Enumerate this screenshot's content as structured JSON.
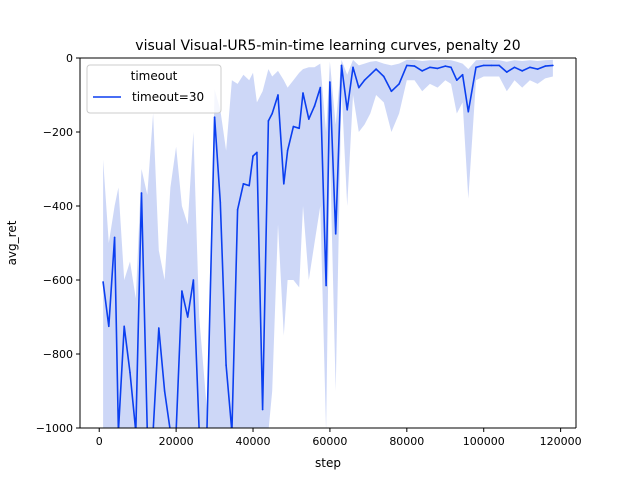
{
  "chart_data": {
    "type": "line",
    "title": "visual Visual-UR5-min-time learning curves, penalty 20",
    "xlabel": "step",
    "ylabel": "avg_ret",
    "xlim": [
      -5000,
      124000
    ],
    "ylim": [
      -1000,
      0
    ],
    "xticks": [
      0,
      20000,
      40000,
      60000,
      80000,
      100000,
      120000
    ],
    "xtick_labels": [
      "0",
      "20000",
      "40000",
      "60000",
      "80000",
      "100000",
      "120000"
    ],
    "yticks": [
      -1000,
      -800,
      -600,
      -400,
      -200,
      0
    ],
    "ytick_labels": [
      "−1000",
      "−800",
      "−600",
      "−400",
      "−200",
      "0"
    ],
    "grid": false,
    "legend": {
      "title": "timeout",
      "placement": "top-left",
      "entries": [
        "timeout=30"
      ]
    },
    "series": [
      {
        "name": "timeout=30",
        "color": "#0b3ff0",
        "band_color": "#c4d0f6",
        "x": [
          1000,
          2500,
          4000,
          5000,
          6500,
          8000,
          9500,
          11000,
          12500,
          14000,
          15500,
          17000,
          18500,
          20000,
          21500,
          23000,
          24500,
          26000,
          28000,
          30000,
          31500,
          33000,
          34500,
          36000,
          37500,
          39000,
          40000,
          41000,
          42500,
          44000,
          45000,
          46500,
          48000,
          49000,
          50500,
          52000,
          53000,
          54500,
          56000,
          57500,
          59000,
          60000,
          61500,
          63000,
          64500,
          66000,
          67500,
          69000,
          70500,
          72000,
          74000,
          76000,
          78000,
          80000,
          82000,
          84000,
          86000,
          88000,
          90000,
          91500,
          93000,
          94500,
          96000,
          98000,
          100000,
          102000,
          104000,
          106000,
          108000,
          110000,
          112000,
          114000,
          116000,
          118000
        ],
        "y": [
          -605,
          -725,
          -485,
          -1010,
          -725,
          -850,
          -1010,
          -365,
          -1010,
          -1010,
          -730,
          -900,
          -1010,
          -1010,
          -630,
          -700,
          -600,
          -1010,
          -1010,
          -160,
          -390,
          -830,
          -1010,
          -410,
          -340,
          -345,
          -265,
          -255,
          -950,
          -170,
          -150,
          -100,
          -340,
          -250,
          -185,
          -190,
          -95,
          -165,
          -130,
          -80,
          -615,
          -65,
          -475,
          -20,
          -140,
          -25,
          -80,
          -60,
          -45,
          -30,
          -50,
          -90,
          -70,
          -20,
          -22,
          -35,
          -25,
          -28,
          -22,
          -25,
          -60,
          -45,
          -145,
          -25,
          -20,
          -20,
          -20,
          -38,
          -25,
          -35,
          -25,
          -30,
          -22,
          -20
        ],
        "band_upper": [
          -275,
          -500,
          -400,
          -350,
          -600,
          -550,
          -650,
          -300,
          -370,
          -150,
          -520,
          -600,
          -350,
          -240,
          -400,
          -450,
          -200,
          -700,
          -950,
          -85,
          -140,
          -250,
          -60,
          -70,
          -45,
          -60,
          -40,
          -120,
          -90,
          -30,
          -50,
          -35,
          -60,
          -80,
          -60,
          -40,
          -30,
          -25,
          -25,
          -15,
          -200,
          -10,
          -180,
          -5,
          -45,
          -5,
          -20,
          -15,
          -10,
          -8,
          -15,
          -20,
          -15,
          -5,
          -5,
          -8,
          -6,
          -6,
          -5,
          -6,
          -10,
          -15,
          -30,
          -6,
          -5,
          -5,
          -6,
          -10,
          -6,
          -8,
          -6,
          -8,
          -6,
          -5
        ],
        "band_lower": [
          -1010,
          -1010,
          -1010,
          -1010,
          -1010,
          -1010,
          -1010,
          -1010,
          -1010,
          -1010,
          -1010,
          -1010,
          -1010,
          -1010,
          -1010,
          -1010,
          -1010,
          -1010,
          -1010,
          -1010,
          -1010,
          -1010,
          -1010,
          -1010,
          -1010,
          -1010,
          -1010,
          -1010,
          -1010,
          -1010,
          -900,
          -450,
          -750,
          -600,
          -600,
          -620,
          -400,
          -600,
          -500,
          -400,
          -1010,
          -250,
          -900,
          -80,
          -400,
          -100,
          -200,
          -180,
          -150,
          -100,
          -120,
          -200,
          -150,
          -60,
          -60,
          -90,
          -70,
          -80,
          -60,
          -70,
          -150,
          -120,
          -380,
          -60,
          -50,
          -50,
          -50,
          -90,
          -60,
          -80,
          -60,
          -70,
          -55,
          -50
        ]
      }
    ]
  }
}
